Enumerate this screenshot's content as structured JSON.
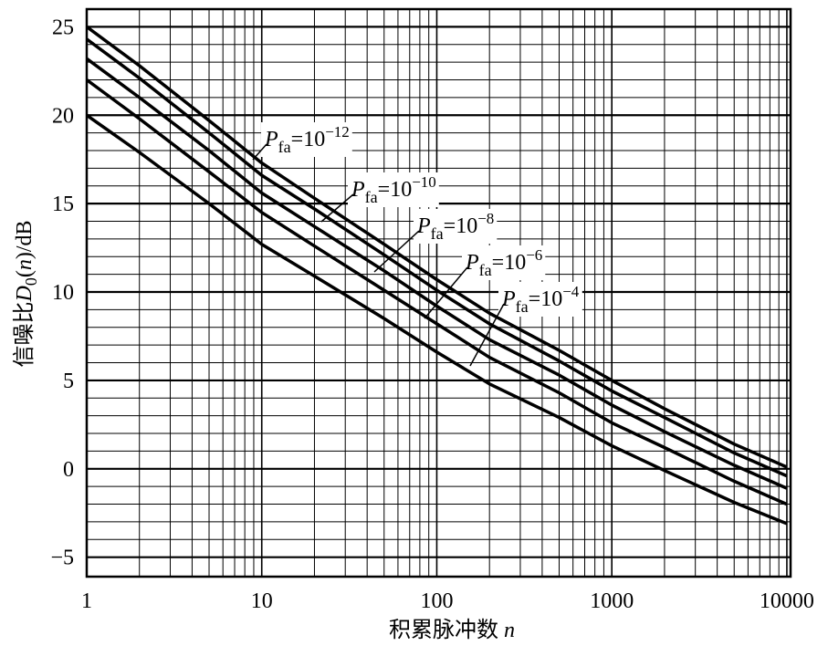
{
  "chart_data": {
    "type": "line",
    "xscale": "log",
    "xlim": [
      1,
      10500
    ],
    "ylim": [
      -6.1,
      26
    ],
    "xticks": [
      1,
      10,
      100,
      1000,
      10000
    ],
    "xminorticks": [
      2,
      3,
      4,
      5,
      6,
      7,
      8,
      9,
      20,
      30,
      40,
      50,
      60,
      70,
      80,
      90,
      200,
      300,
      400,
      500,
      600,
      700,
      800,
      900,
      2000,
      3000,
      4000,
      5000,
      6000,
      7000,
      8000,
      9000
    ],
    "yticks": [
      {
        "value": -5,
        "label": "−5"
      },
      0,
      5,
      10,
      15,
      20,
      25
    ],
    "yminorticks": [
      -4,
      -3,
      -2,
      -1,
      1,
      2,
      3,
      4,
      6,
      7,
      8,
      9,
      11,
      12,
      13,
      14,
      16,
      17,
      18,
      19,
      21,
      22,
      23,
      24
    ],
    "grid": true,
    "color": "#000000",
    "xlabel": [
      "积累脉冲数 ",
      "n"
    ],
    "ylabel": [
      "信噪比",
      "D",
      "0",
      "(",
      "n",
      ")/dB"
    ],
    "x": [
      1,
      2,
      5,
      10,
      20,
      50,
      100,
      200,
      500,
      1000,
      2000,
      5000,
      10000
    ],
    "series": [
      {
        "values": [
          20,
          17.9,
          15.0,
          12.7,
          10.9,
          8.5,
          6.6,
          4.8,
          2.9,
          1.3,
          -0.1,
          -1.9,
          -3.1
        ]
      },
      {
        "values": [
          22,
          19.8,
          16.8,
          14.5,
          12.6,
          10.1,
          8.2,
          6.3,
          4.3,
          2.6,
          1.2,
          -0.7,
          -2.0
        ]
      },
      {
        "values": [
          23.2,
          21.0,
          18.0,
          15.6,
          13.7,
          11.2,
          9.2,
          7.3,
          5.3,
          3.6,
          2.1,
          0.2,
          -1.1
        ]
      },
      {
        "values": [
          24.3,
          22.1,
          19.0,
          16.6,
          14.7,
          12.1,
          10.1,
          8.2,
          6.1,
          4.4,
          2.9,
          0.9,
          -0.4
        ]
      },
      {
        "values": [
          25,
          22.8,
          19.7,
          17.3,
          15.3,
          12.7,
          10.7,
          8.8,
          6.7,
          5.0,
          3.4,
          1.4,
          0.1
        ]
      }
    ],
    "annotations": [
      [
        "P",
        "fa",
        "=10",
        "−12"
      ],
      [
        "P",
        "fa",
        "=10",
        "−10"
      ],
      [
        "P",
        "fa",
        "=10",
        "−8"
      ],
      [
        "P",
        "fa",
        "=10",
        "−6"
      ],
      [
        "P",
        "fa",
        "=10",
        "−4"
      ]
    ]
  }
}
